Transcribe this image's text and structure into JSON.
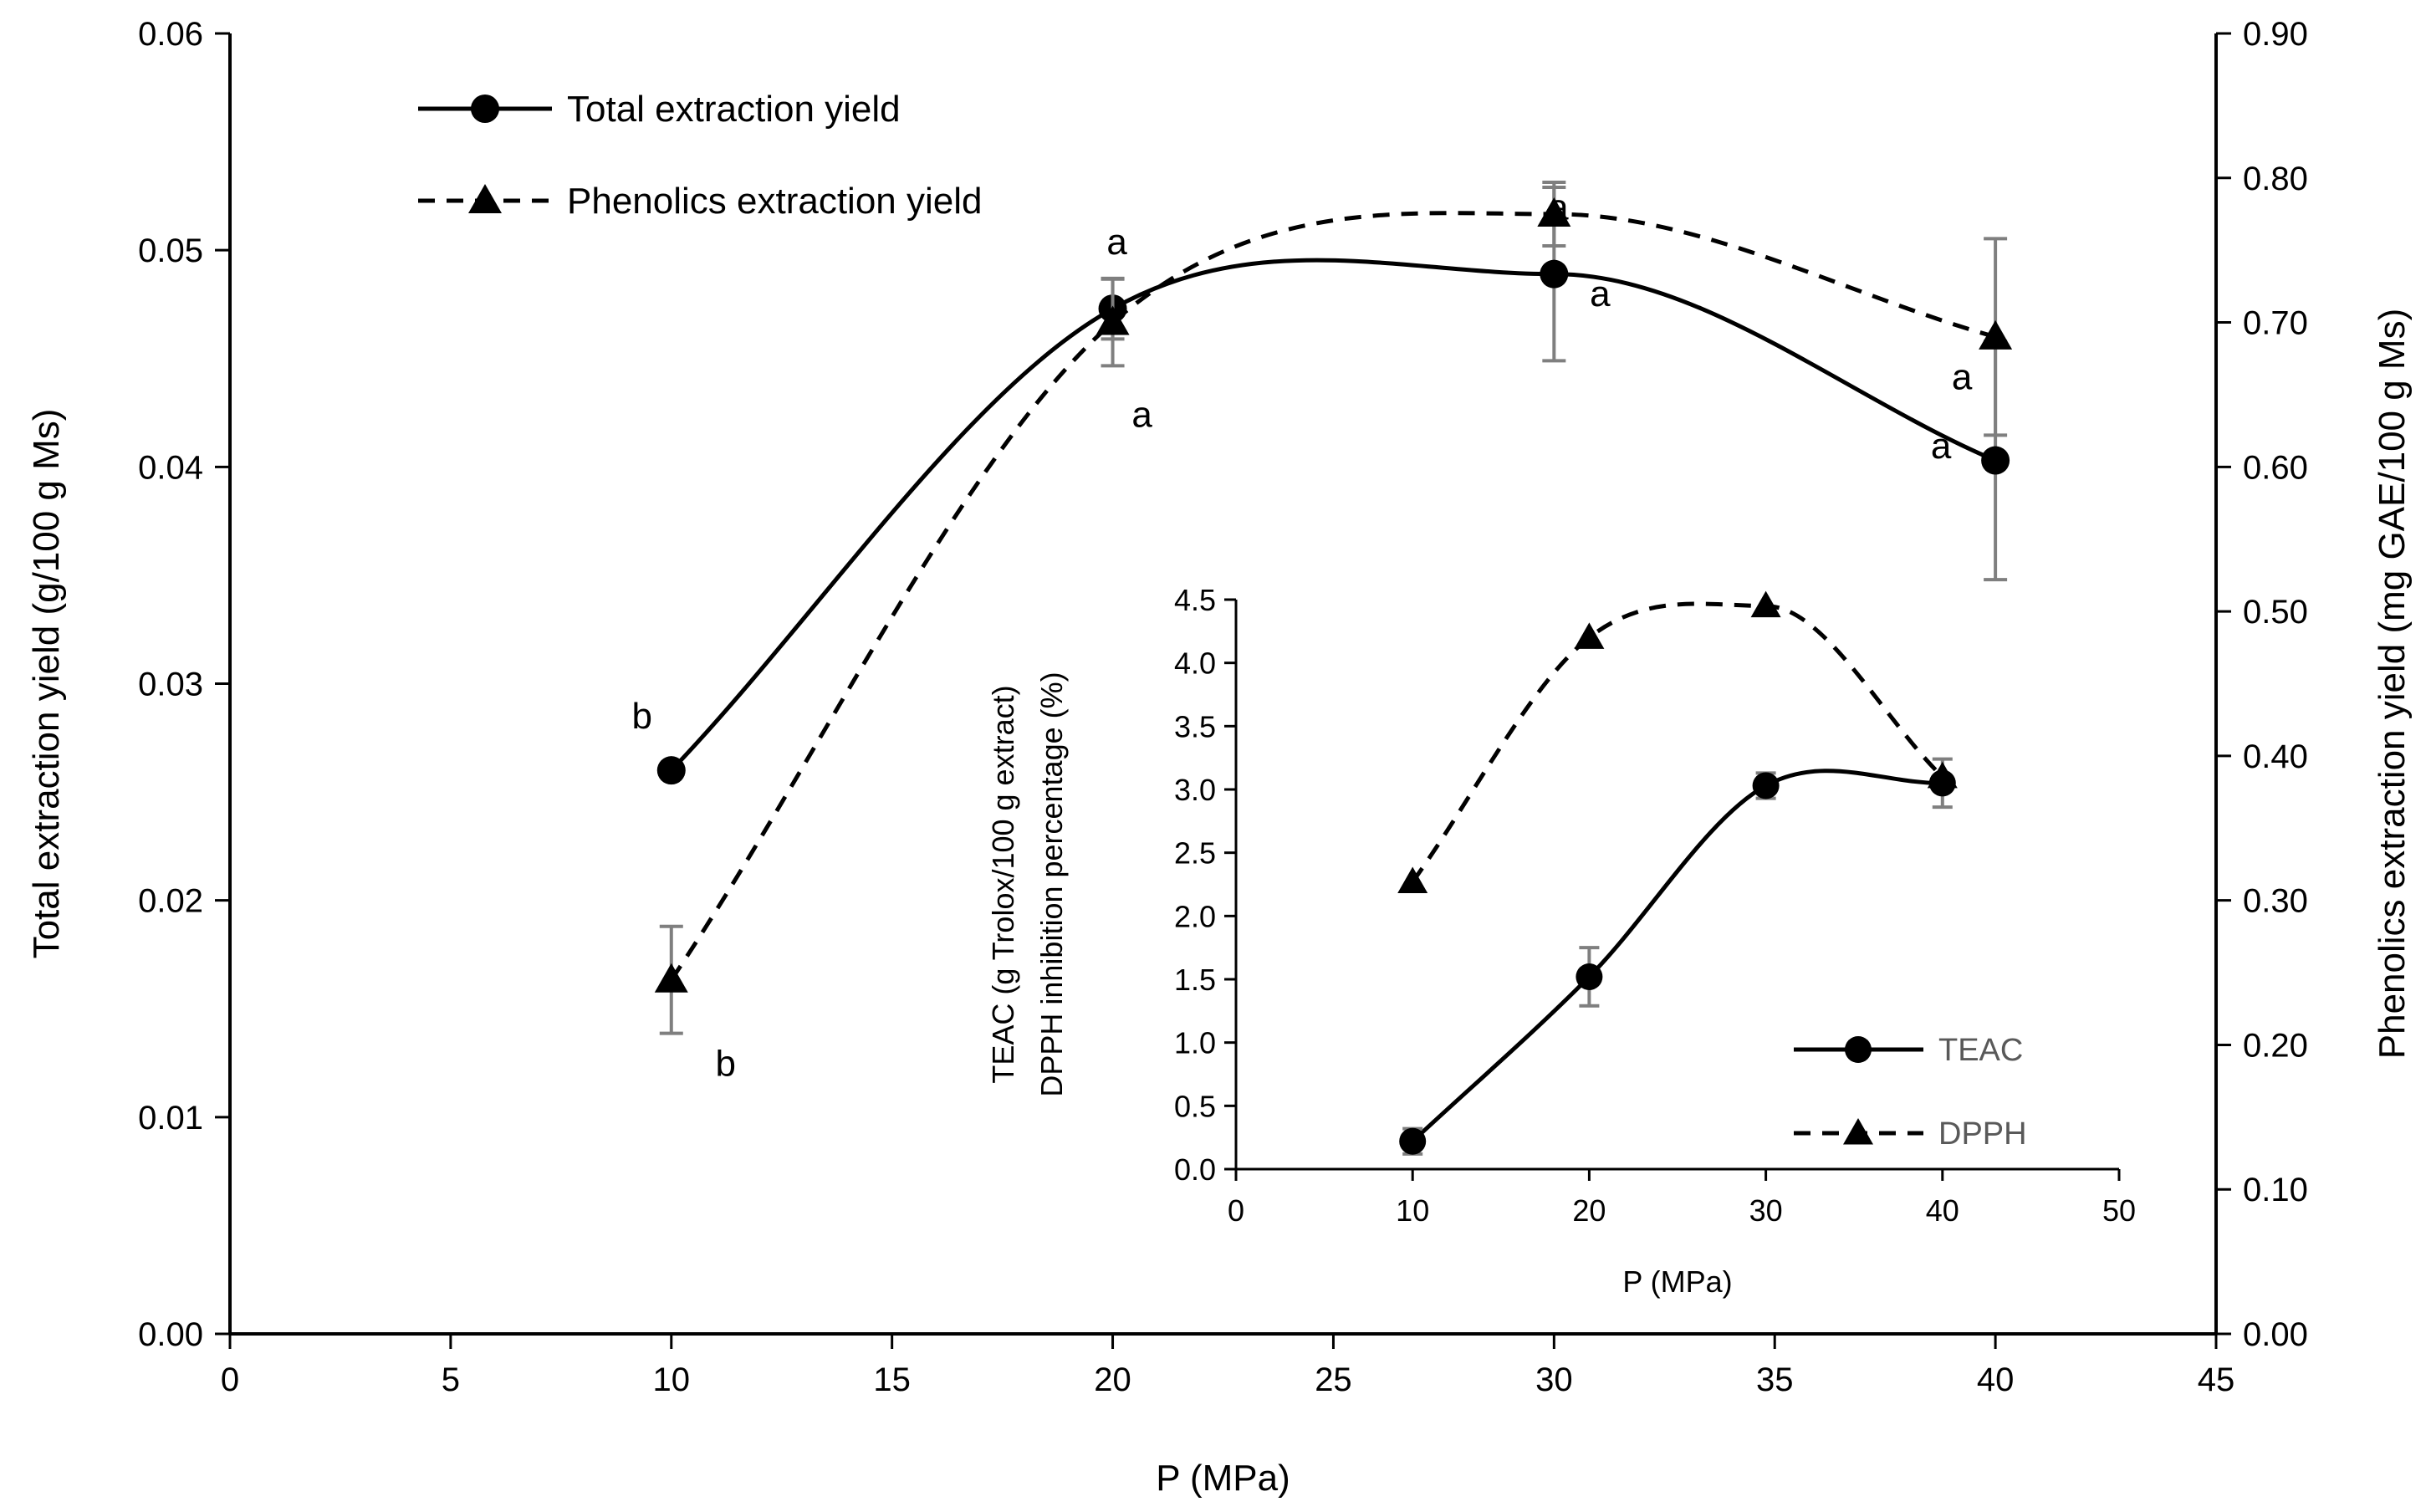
{
  "chart_data": [
    {
      "type": "line",
      "xlabel": "P (MPa)",
      "ylabel": "Total extraction yield (g/100 g Ms)",
      "y2label": "Phenolics extraction yield (mg GAE/100 g Ms)",
      "xlim": [
        0,
        45
      ],
      "ylim": [
        0,
        0.06
      ],
      "y2lim": [
        0,
        0.9
      ],
      "xticks": [
        "0",
        "5",
        "10",
        "15",
        "20",
        "25",
        "30",
        "35",
        "40",
        "45"
      ],
      "yticks": [
        "0.00",
        "0.01",
        "0.02",
        "0.03",
        "0.04",
        "0.05",
        "0.06"
      ],
      "y2ticks": [
        "0.00",
        "0.10",
        "0.20",
        "0.30",
        "0.40",
        "0.50",
        "0.60",
        "0.70",
        "0.80",
        "0.90"
      ],
      "grid": false,
      "legend_position": "top-left",
      "series": [
        {
          "name": "Total extraction yield",
          "axis": "left",
          "marker": "circle",
          "line_style": "solid",
          "x": [
            10,
            20,
            30,
            40
          ],
          "y": [
            0.026,
            0.0473,
            0.0489,
            0.0403
          ],
          "error": [
            0,
            0.0014,
            0.004,
            0.0055
          ],
          "letters": [
            "b",
            "a",
            "a",
            "a"
          ]
        },
        {
          "name": "Phenolics extraction yield",
          "axis": "right",
          "marker": "triangle",
          "line_style": "dashed",
          "x": [
            10,
            20,
            30,
            40
          ],
          "y": [
            0.245,
            0.7,
            0.775,
            0.69
          ],
          "error": [
            0.037,
            0.03,
            0.022,
            0.068
          ],
          "letters": [
            "b",
            "a",
            "a",
            "a"
          ]
        }
      ]
    },
    {
      "type": "line",
      "inset": true,
      "xlabel": "P (MPa)",
      "ylabel_lines": [
        "TEAC (g Trolox/100 g extract)",
        "DPPH inhibition percentage (%)"
      ],
      "xlim": [
        0,
        50
      ],
      "ylim": [
        0,
        4.5
      ],
      "xticks": [
        "0",
        "10",
        "20",
        "30",
        "40",
        "50"
      ],
      "yticks": [
        "0.0",
        "0.5",
        "1.0",
        "1.5",
        "2.0",
        "2.5",
        "3.0",
        "3.5",
        "4.0",
        "4.5"
      ],
      "grid": false,
      "legend_position": "bottom-right",
      "series": [
        {
          "name": "TEAC",
          "marker": "circle",
          "line_style": "solid",
          "x": [
            10,
            20,
            30,
            40
          ],
          "y": [
            0.22,
            1.52,
            3.03,
            3.05
          ],
          "error": [
            0.1,
            0.23,
            0.1,
            0.19
          ]
        },
        {
          "name": "DPPH",
          "marker": "triangle",
          "line_style": "dashed",
          "x": [
            10,
            20,
            30,
            40
          ],
          "y": [
            2.27,
            4.2,
            4.45,
            3.1
          ],
          "error": [
            0,
            0,
            0,
            0
          ]
        }
      ]
    }
  ]
}
